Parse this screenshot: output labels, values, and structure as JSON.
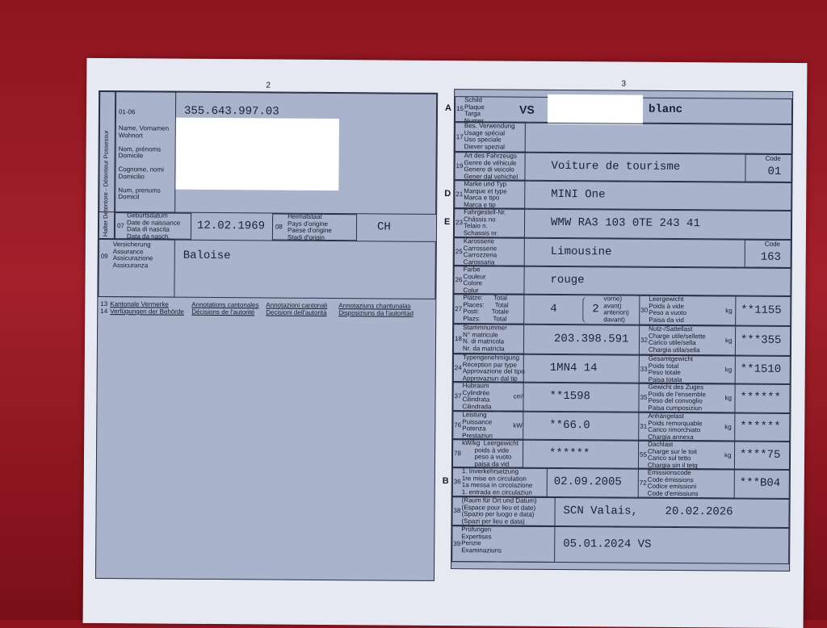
{
  "left": {
    "page_number": "2",
    "holder_vertical_label": "Halter Detentore - Détenteur Possessur",
    "holder_code": "01-06",
    "holder_labels": "Name, Vornamen\nWohnort\n\nNom, prénoms\nDomicile\n\nCognome, nomi\nDomicilio\n\nNum, prenums\nDomicil",
    "holder_number": "355.643.997.03",
    "birth": {
      "num": "07",
      "labels": "Geburtsdatum\nDate de naissance\nData di nascita\nData da nasch.",
      "value": "12.02.1969"
    },
    "origin": {
      "num": "08",
      "labels": "Heimatstaat\nPays d'origine\nPaese d'origine\nStadi d'origin",
      "value": "CH"
    },
    "insurance": {
      "num": "09",
      "labels": "Versicherung\nAssurance\nAssicurazione\nAssicuranza",
      "value": "Baloise"
    },
    "remarks": {
      "nums": "13\n14",
      "cols": [
        "Kantonale Vermerke\nVerfügungen der Behörde",
        "Annotations cantonales\nDécisions de l'autorité",
        "Annotazioni cantonali\nDecisioni dell'autorità",
        "Annotaziuns chantunalas\nDisposiziuns da l'autoritad"
      ]
    }
  },
  "right": {
    "page_number": "3",
    "code_label": "Code",
    "rows": [
      {
        "side": "A",
        "num": "15",
        "labels": "Schild\nPlaque\nTarga\nNumer",
        "prefix": "VS",
        "value": "blanc",
        "redacted": true
      },
      {
        "num": "17",
        "labels": "Bes. Verwendung\nUsage spécial\nUso speciale\nDiever spezial",
        "value": ""
      },
      {
        "num": "19",
        "labels": "Art des Fahrzeugs\nGenre de véhicule\nGenere di veicolo\nGener dal vehichel",
        "value": "Voiture de tourisme",
        "code": "01"
      },
      {
        "side": "D",
        "num": "21",
        "labels": "Marke und Typ\nMarque et type\nMarca e tipo\nMarca e tip",
        "value": "MINI One"
      },
      {
        "side": "E",
        "num": "23",
        "labels": "Fahrgestell-Nr.\nChâssis no\nTelaio n.\nSchassis nr.",
        "value": "WMW RA3 103 0TE 243 41"
      },
      {
        "num": "25",
        "labels": "Karosserie\nCarrosserie\nCarrozzeria\nCarossaria",
        "value": "Limousine",
        "code": "163"
      },
      {
        "num": "26",
        "labels": "Farbe\nCouleur\nColore\nColur",
        "value": "rouge"
      },
      {
        "num": "27",
        "labels": "Plätze:      Total\nPlaces:      Total\nPosti:       Totale\nPlazs:       Total",
        "value": "4",
        "front_value": "2",
        "front_labels": "vorne)\navant)\nanterion)\ndavant)",
        "num2": "30",
        "labels2": "Leergewicht\nPoids à vide\nPeso a vuoto\nPaisa da vid",
        "unit2": "kg",
        "value2": "**1155"
      },
      {
        "num": "18",
        "labels": "Stammnummer\nN° matricule\nN. di matricola\nNr. da matricla",
        "value": "203.398.591",
        "num2": "32",
        "labels2": "Nutz-/Sattellast\nCharge utile/sellette\nCarico utile/sella\nChargia utila/sella",
        "unit2": "kg",
        "value2": "***355"
      },
      {
        "num": "24",
        "labels": "Typengenehmigung\nRéception par type\nApprovazione del tipo\nApprovaziun dal tip",
        "value": "1MN4 14",
        "num2": "33",
        "labels2": "Gesamtgewicht\nPoids total\nPeso totale\nPaisa totala",
        "unit2": "kg",
        "value2": "**1510"
      },
      {
        "num": "37",
        "labels": "Hubraum\nCylindrée\nCilindrata\nCilindrada",
        "unit": "cm³",
        "value": "**1598",
        "num2": "35",
        "labels2": "Gewicht des Zuges\nPoids de l'ensemble\nPeso del convoglio\nPaisa cumposiziun",
        "unit2": "kg",
        "value2": "******"
      },
      {
        "num": "76",
        "labels": "Leistung\nPuissance\nPotenza\nPrestaziun",
        "unit": "kW",
        "value": "**66.0",
        "num2": "31",
        "labels2": "Anhängelast\nPoids remorquable\nCarico rimorchiato\nChargia annexa",
        "unit2": "kg",
        "value2": "******"
      },
      {
        "num": "78",
        "labels": "kW/kg  Leergewicht\n       poids à vide\n       peso a vuoto\n       paisa da vid",
        "value": "******",
        "num2": "55",
        "labels2": "Dachlast\nCharge sur le toit\nCarico sul tetto\nChargia sin il tetg",
        "unit2": "kg",
        "value2": "****75"
      },
      {
        "side": "B",
        "num": "36",
        "labels": "1. Inverkehrsetzung\n1re mise en circulation\n1a messa in circolazione\n1. entrada en circulaziun",
        "value": "02.09.2005",
        "num2": "72",
        "labels2": "Emissionscode\nCode émissions\nCodice emissioni\nCode d'emissiuns",
        "value2": "***B04"
      },
      {
        "num": "38",
        "labels": "(Raum für Ort und Datum)\n(Espace pour lieu et date)\n(Spazio per luogo e data)\n(Spazi per lieu e data)",
        "value": "SCN Valais,    20.02.2026",
        "wide": true
      },
      {
        "num": "39",
        "labels": "Prüfungen\nExpertises\nPerizie\nExaminaziuns",
        "value": "05.01.2024 VS",
        "wide": true
      }
    ]
  }
}
